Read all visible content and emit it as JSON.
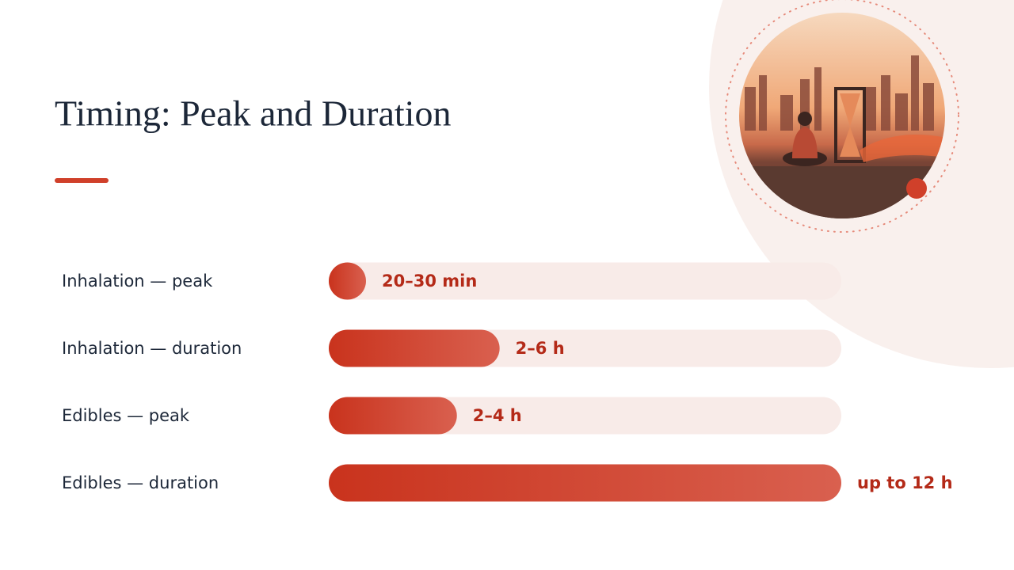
{
  "chart_data": {
    "type": "bar",
    "orientation": "horizontal",
    "title": "Timing: Peak and Duration",
    "categories": [
      "Inhalation — peak",
      "Inhalation — duration",
      "Edibles — peak",
      "Edibles — duration"
    ],
    "values": [
      0.42,
      4,
      3,
      12
    ],
    "value_labels": [
      "20–30 min",
      "2–6 h",
      "2–4 h",
      "up to 12 h"
    ],
    "xlim": [
      0,
      12
    ],
    "color": "#c9331d"
  }
}
